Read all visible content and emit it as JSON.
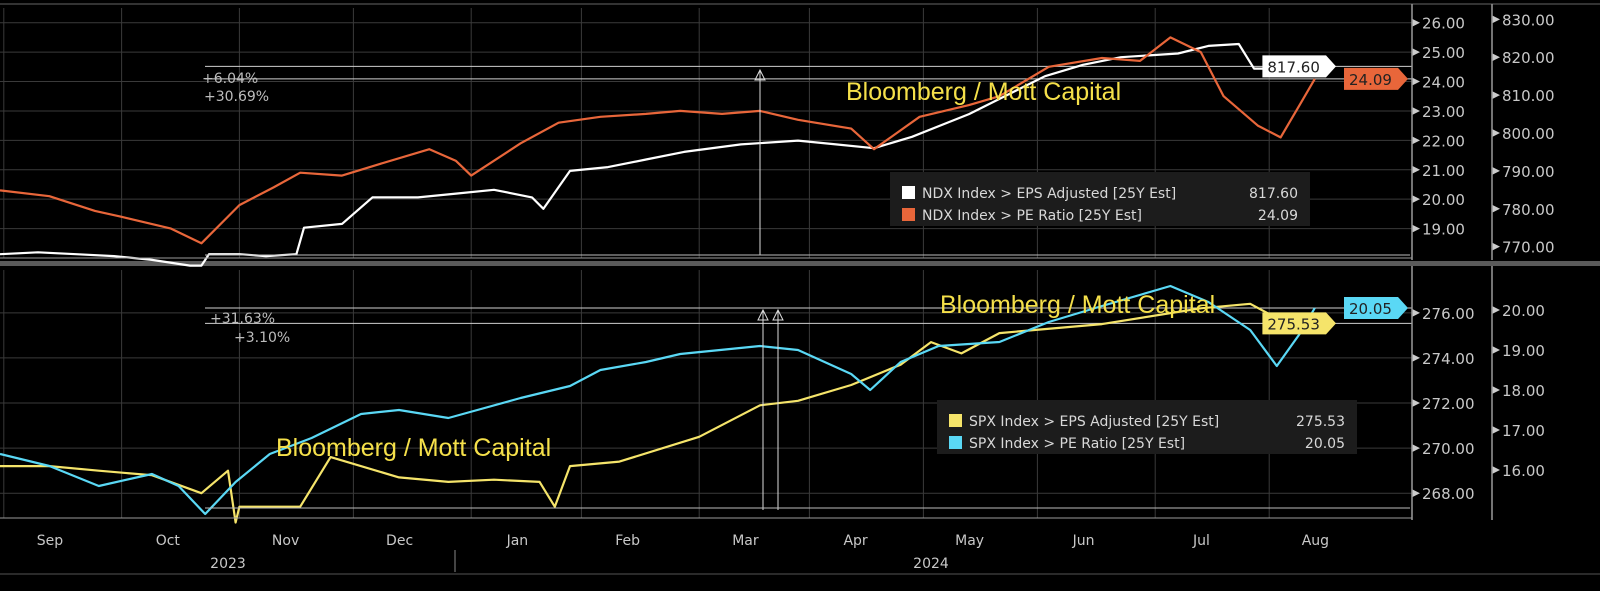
{
  "chart_data": [
    {
      "type": "line",
      "panel": "top",
      "x_unit": "days since 2023-08-21",
      "watermark": "Bloomberg / Mott Capital",
      "annotations": [
        "+6.04%",
        "+30.69%"
      ],
      "left_axis": {
        "ticks": [
          "19.00",
          "20.00",
          "21.00",
          "22.00",
          "23.00",
          "24.00",
          "25.00",
          "26.00"
        ],
        "ylim": [
          18.0,
          26.5
        ]
      },
      "right_axis": {
        "ticks": [
          "770.00",
          "780.00",
          "790.00",
          "800.00",
          "810.00",
          "820.00",
          "830.00"
        ],
        "ylim": [
          767,
          833
        ]
      },
      "series": [
        {
          "name": "NDX Index > EPS Adjusted [25Y Est]",
          "last": "817.60",
          "color": "#ffffff",
          "axis": "right",
          "points": [
            [
              0,
              768
            ],
            [
              10,
              768.5
            ],
            [
              20,
              768
            ],
            [
              30,
              767.5
            ],
            [
              40,
              766.5
            ],
            [
              50,
              765
            ],
            [
              53,
              765
            ],
            [
              55,
              768
            ],
            [
              63,
              768
            ],
            [
              70,
              767.5
            ],
            [
              78,
              768
            ],
            [
              80,
              775
            ],
            [
              90,
              776
            ],
            [
              98,
              783
            ],
            [
              110,
              783
            ],
            [
              120,
              784
            ],
            [
              130,
              785
            ],
            [
              140,
              783
            ],
            [
              143,
              780
            ],
            [
              150,
              790
            ],
            [
              160,
              791
            ],
            [
              170,
              793
            ],
            [
              180,
              795
            ],
            [
              195,
              797
            ],
            [
              210,
              798
            ],
            [
              220,
              797
            ],
            [
              230,
              796
            ],
            [
              240,
              799
            ],
            [
              255,
              805
            ],
            [
              265,
              810
            ],
            [
              275,
              815
            ],
            [
              285,
              818
            ],
            [
              295,
              820
            ],
            [
              310,
              821
            ],
            [
              318,
              823
            ],
            [
              326,
              823.5
            ],
            [
              330,
              817
            ],
            [
              340,
              817
            ],
            [
              346,
              817.6
            ]
          ]
        },
        {
          "name": "NDX Index > PE Ratio [25Y Est]",
          "last": "24.09",
          "color": "#e8663a",
          "axis": "left",
          "points": [
            [
              0,
              20.3
            ],
            [
              13,
              20.1
            ],
            [
              25,
              19.6
            ],
            [
              32,
              19.4
            ],
            [
              45,
              19.0
            ],
            [
              53,
              18.5
            ],
            [
              63,
              19.8
            ],
            [
              72,
              20.4
            ],
            [
              79,
              20.9
            ],
            [
              90,
              20.8
            ],
            [
              100,
              21.2
            ],
            [
              113,
              21.7
            ],
            [
              120,
              21.3
            ],
            [
              124,
              20.8
            ],
            [
              137,
              21.9
            ],
            [
              147,
              22.6
            ],
            [
              158,
              22.8
            ],
            [
              170,
              22.9
            ],
            [
              179,
              23.0
            ],
            [
              190,
              22.9
            ],
            [
              200,
              23.0
            ],
            [
              210,
              22.7
            ],
            [
              224,
              22.4
            ],
            [
              230,
              21.7
            ],
            [
              242,
              22.8
            ],
            [
              255,
              23.2
            ],
            [
              263,
              23.5
            ],
            [
              276,
              24.5
            ],
            [
              290,
              24.8
            ],
            [
              300,
              24.7
            ],
            [
              308,
              25.5
            ],
            [
              316,
              25.0
            ],
            [
              322,
              23.5
            ],
            [
              331,
              22.5
            ],
            [
              337,
              22.1
            ],
            [
              342,
              23.2
            ],
            [
              346,
              24.09
            ]
          ]
        }
      ],
      "reference_levels": [
        817.6,
        24.09
      ]
    },
    {
      "type": "line",
      "panel": "bottom",
      "x_unit": "days since 2023-08-21",
      "watermarks": [
        "Bloomberg / Mott Capital",
        "Bloomberg / Mott Capital"
      ],
      "annotations": [
        "+31.63%",
        "+3.10%"
      ],
      "left_axis": {
        "ticks": [
          "268.00",
          "270.00",
          "272.00",
          "274.00",
          "276.00"
        ],
        "ylim": [
          266.9,
          277.9
        ]
      },
      "right_axis": {
        "ticks": [
          "16.00",
          "17.00",
          "18.00",
          "19.00",
          "20.00"
        ],
        "ylim": [
          14.8,
          21.0
        ]
      },
      "series": [
        {
          "name": "SPX Index > EPS Adjusted [25Y Est]",
          "last": "275.53",
          "color": "#f5e46a",
          "axis": "left",
          "points": [
            [
              0,
              269.2
            ],
            [
              13,
              269.2
            ],
            [
              26,
              269.0
            ],
            [
              40,
              268.8
            ],
            [
              53,
              268.0
            ],
            [
              60,
              269.0
            ],
            [
              62,
              266.7
            ],
            [
              63,
              267.4
            ],
            [
              79,
              267.4
            ],
            [
              87,
              269.6
            ],
            [
              105,
              268.7
            ],
            [
              118,
              268.5
            ],
            [
              130,
              268.6
            ],
            [
              142,
              268.5
            ],
            [
              146,
              267.4
            ],
            [
              150,
              269.2
            ],
            [
              163,
              269.4
            ],
            [
              184,
              270.5
            ],
            [
              200,
              271.9
            ],
            [
              210,
              272.1
            ],
            [
              224,
              272.8
            ],
            [
              237,
              273.7
            ],
            [
              245,
              274.7
            ],
            [
              253,
              274.2
            ],
            [
              263,
              275.1
            ],
            [
              290,
              275.5
            ],
            [
              316,
              276.2
            ],
            [
              329,
              276.4
            ],
            [
              340,
              275.4
            ],
            [
              346,
              275.53
            ]
          ]
        },
        {
          "name": "SPX Index > PE Ratio [25Y Est]",
          "last": "20.05",
          "color": "#5ad8f5",
          "axis": "right",
          "points": [
            [
              0,
              16.4
            ],
            [
              13,
              16.1
            ],
            [
              26,
              15.6
            ],
            [
              40,
              15.9
            ],
            [
              47,
              15.6
            ],
            [
              54,
              14.9
            ],
            [
              62,
              15.7
            ],
            [
              71,
              16.4
            ],
            [
              82,
              16.8
            ],
            [
              95,
              17.4
            ],
            [
              105,
              17.5
            ],
            [
              118,
              17.3
            ],
            [
              137,
              17.8
            ],
            [
              150,
              18.1
            ],
            [
              158,
              18.5
            ],
            [
              170,
              18.7
            ],
            [
              179,
              18.9
            ],
            [
              200,
              19.1
            ],
            [
              210,
              19.0
            ],
            [
              224,
              18.4
            ],
            [
              229,
              18.0
            ],
            [
              237,
              18.7
            ],
            [
              247,
              19.1
            ],
            [
              263,
              19.2
            ],
            [
              276,
              19.7
            ],
            [
              290,
              20.1
            ],
            [
              308,
              20.6
            ],
            [
              318,
              20.2
            ],
            [
              329,
              19.5
            ],
            [
              336,
              18.6
            ],
            [
              342,
              19.4
            ],
            [
              346,
              20.05
            ]
          ]
        }
      ],
      "reference_levels": [
        275.53,
        20.05
      ]
    }
  ],
  "x_axis": {
    "months": [
      [
        "Sep",
        12
      ],
      [
        "Oct",
        43
      ],
      [
        "Nov",
        74
      ],
      [
        "Dec",
        104
      ],
      [
        "Jan",
        135
      ],
      [
        "Feb",
        164
      ],
      [
        "Mar",
        195
      ],
      [
        "Apr",
        224
      ],
      [
        "May",
        254
      ],
      [
        "Jun",
        284
      ],
      [
        "Jul",
        315
      ],
      [
        "Aug",
        345
      ]
    ],
    "years": [
      [
        "2023",
        60
      ],
      [
        "2024",
        245
      ]
    ]
  },
  "colors": {
    "background": "#000000",
    "grid": "#3a3a3a",
    "axis": "#9a9a9a"
  }
}
